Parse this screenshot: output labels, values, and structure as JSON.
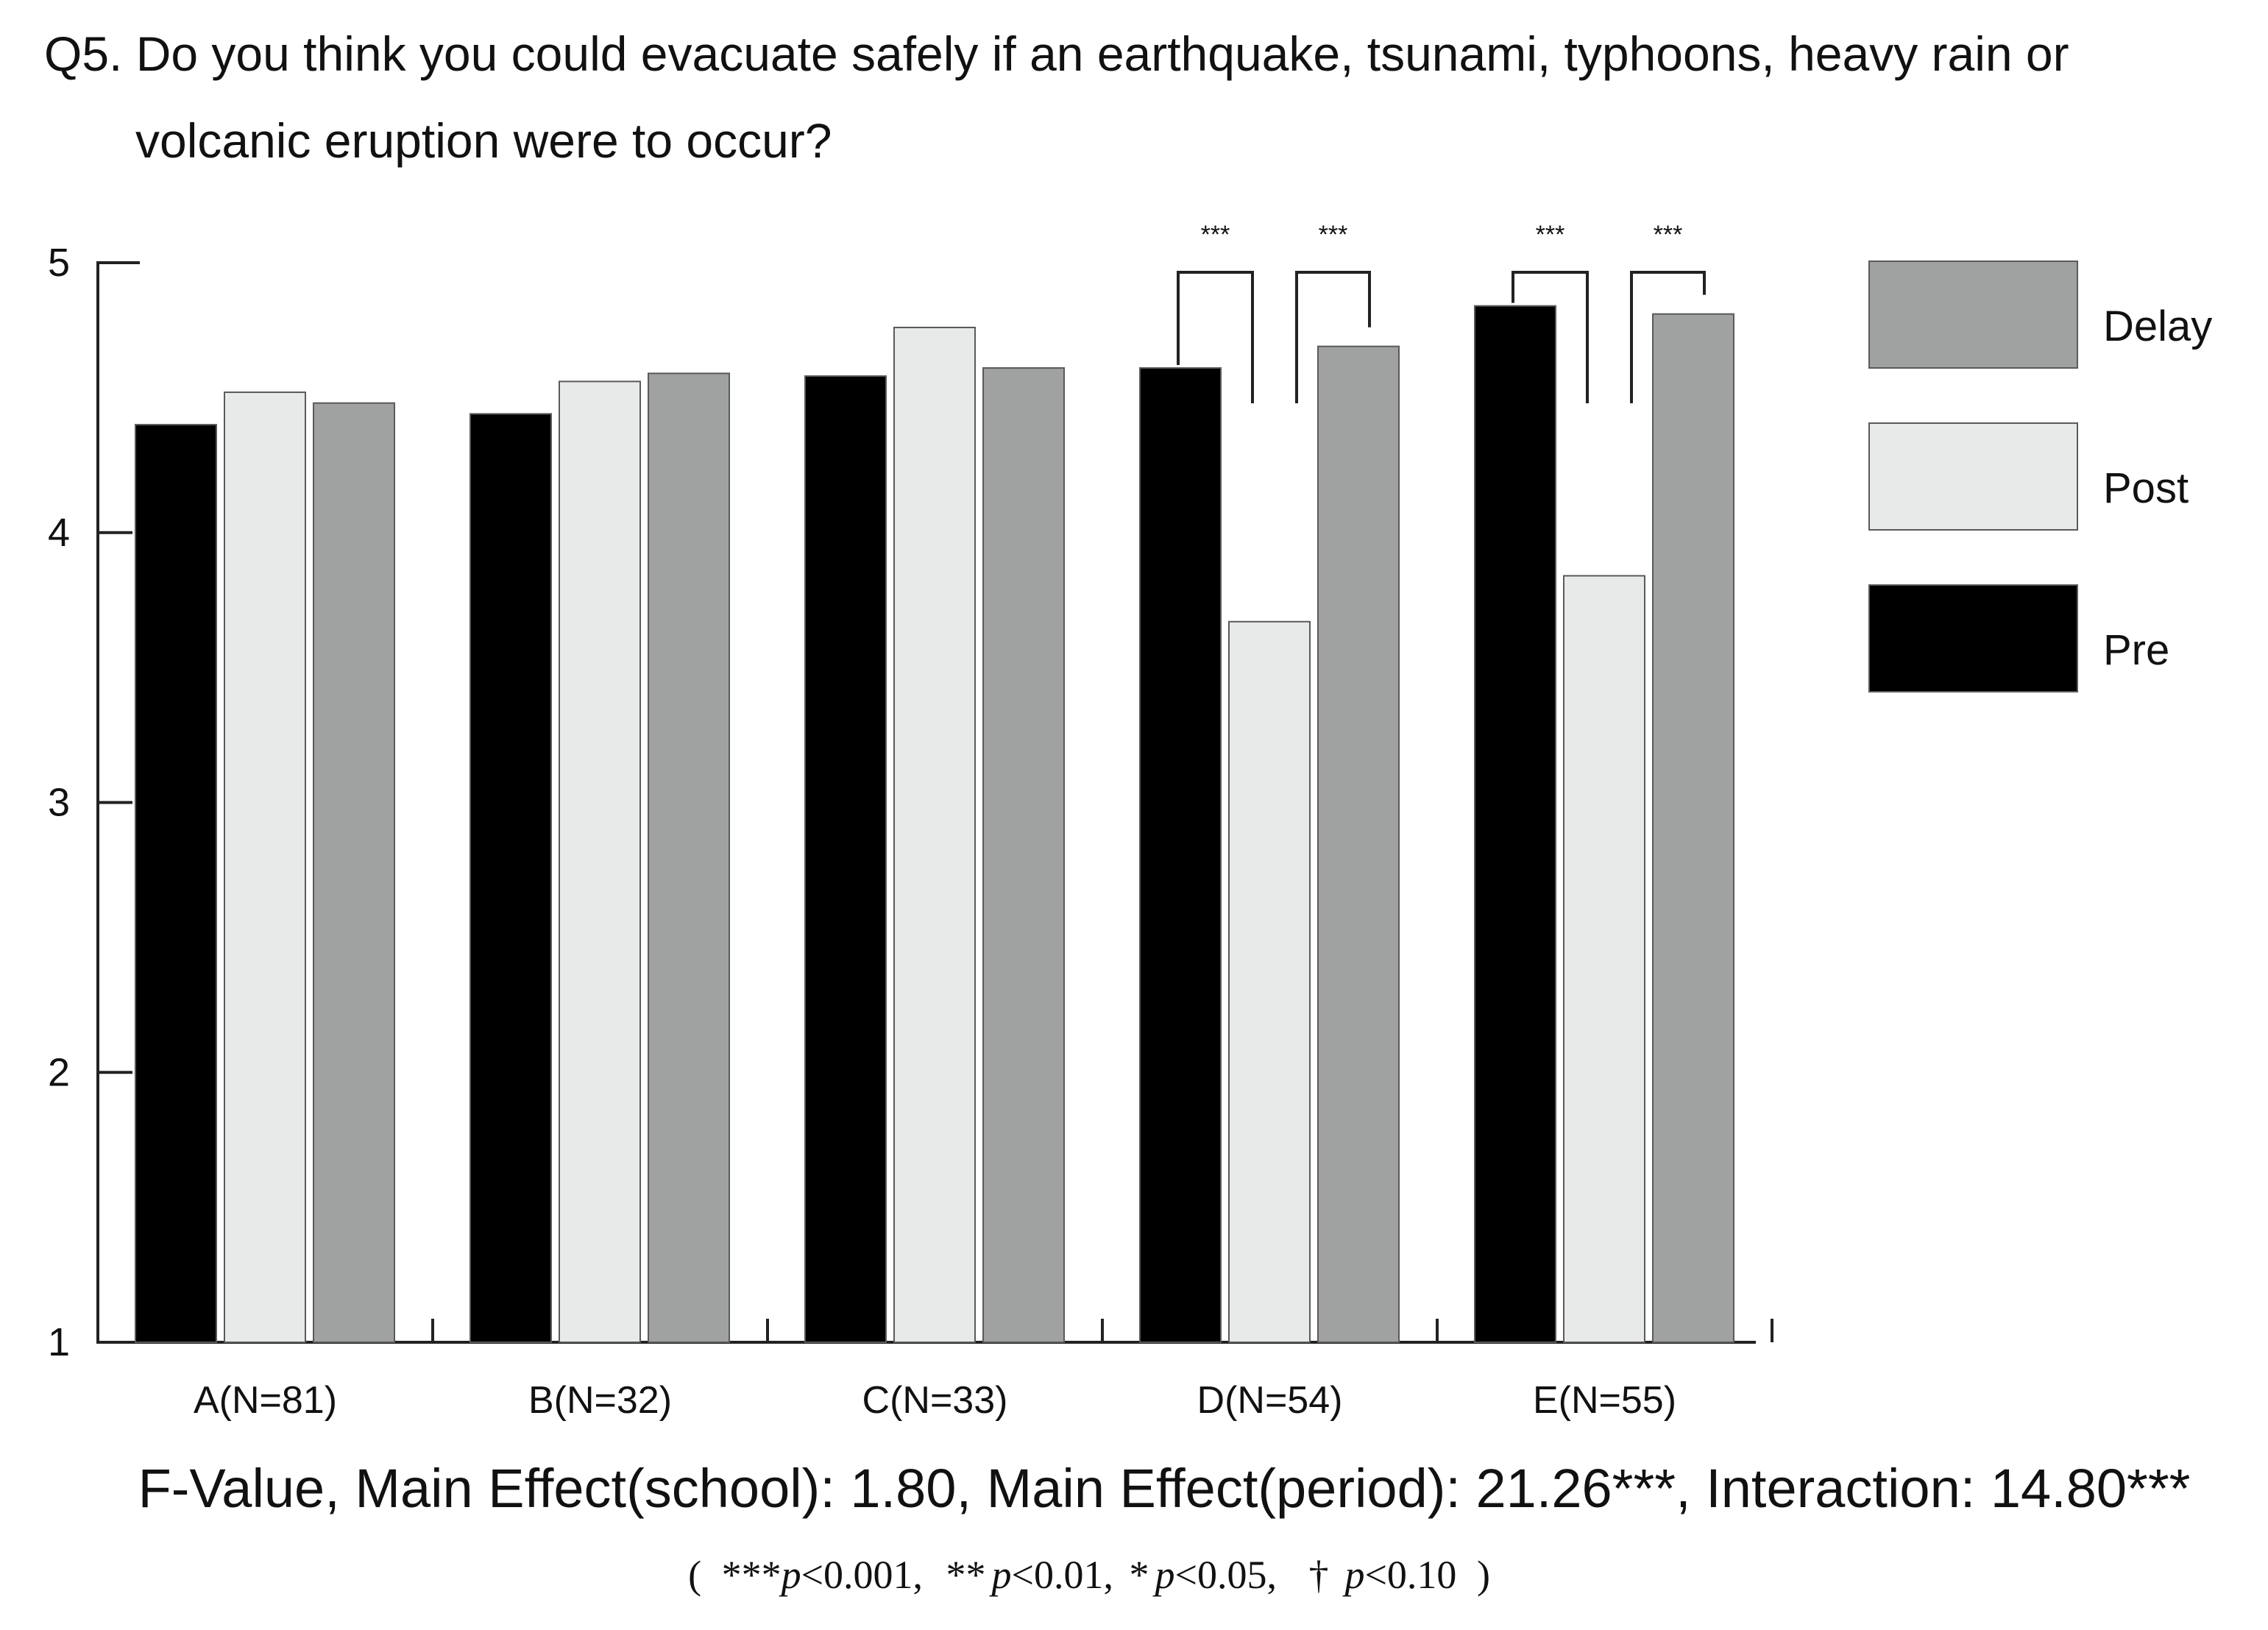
{
  "chart_data": {
    "type": "bar",
    "title_line1": "Q5.  Do you think you could evacuate safely if an earthquake, tsunami, typhoons, heavy rain or",
    "title_line2": "volcanic eruption were to occur?",
    "categories": [
      "A(N=81)",
      "B(N=32)",
      "C(N=33)",
      "D(N=54)",
      "E(N=55)"
    ],
    "series": [
      {
        "name": "Pre",
        "color": "#000000",
        "values": [
          4.4,
          4.44,
          4.58,
          4.61,
          4.84
        ]
      },
      {
        "name": "Post",
        "color": "#e8eaea",
        "values": [
          4.52,
          4.56,
          4.76,
          3.67,
          3.84
        ]
      },
      {
        "name": "Delay",
        "color": "#a0a1a1",
        "values": [
          4.48,
          4.59,
          4.61,
          4.69,
          4.81
        ]
      }
    ],
    "ylim": [
      1,
      5
    ],
    "yticks": [
      1,
      2,
      3,
      4,
      5
    ],
    "xlabel": "",
    "ylabel": "",
    "legend": {
      "placement": "right",
      "order": [
        "Delay",
        "Post",
        "Pre"
      ]
    },
    "significance": [
      {
        "category": "D(N=54)",
        "from": "Pre",
        "to": "Post",
        "label": "***"
      },
      {
        "category": "D(N=54)",
        "from": "Post",
        "to": "Delay",
        "label": "***"
      },
      {
        "category": "E(N=55)",
        "from": "Pre",
        "to": "Post",
        "label": "***"
      },
      {
        "category": "E(N=55)",
        "from": "Post",
        "to": "Delay",
        "label": "***"
      }
    ],
    "fvalue_text": "F-Value, Main Effect(school): 1.80, Main Effect(period): 21.26***, Interaction: 14.80***",
    "note": {
      "open": "(",
      "items": [
        {
          "stars": "***",
          "p": "p",
          "rest": "<0.001,"
        },
        {
          "stars": "**",
          "p": "p",
          "rest": "<0.01,"
        },
        {
          "stars": "*",
          "p": "p",
          "rest": "<0.05,"
        },
        {
          "stars": "†",
          "p": "p",
          "rest": "<0.10"
        }
      ],
      "close": ")"
    }
  }
}
